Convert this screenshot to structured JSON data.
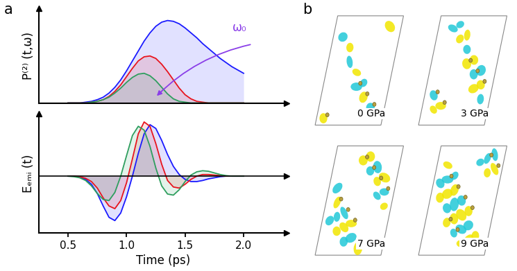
{
  "chart_data": [
    {
      "type": "area",
      "ylabel": "P⁽²⁾ (t,ω)",
      "annotation": "ω₀",
      "tick_labels": false,
      "xlim": [
        0.25,
        2.37
      ],
      "ylim": [
        0,
        1.15
      ],
      "x": [
        0.5,
        0.55,
        0.6,
        0.65,
        0.7,
        0.75,
        0.8,
        0.85,
        0.9,
        0.95,
        1.0,
        1.05,
        1.1,
        1.15,
        1.2,
        1.25,
        1.3,
        1.35,
        1.4,
        1.45,
        1.5,
        1.55,
        1.6,
        1.65,
        1.7,
        1.75,
        1.8,
        1.85,
        1.9,
        1.95,
        2.0
      ],
      "series": [
        {
          "color": "#1a1aff",
          "values": [
            0,
            0,
            0,
            0.01,
            0.02,
            0.04,
            0.07,
            0.12,
            0.19,
            0.28,
            0.39,
            0.51,
            0.63,
            0.75,
            0.85,
            0.93,
            0.98,
            1.0,
            0.99,
            0.96,
            0.91,
            0.85,
            0.79,
            0.72,
            0.66,
            0.6,
            0.54,
            0.49,
            0.44,
            0.4,
            0.36
          ]
        },
        {
          "color": "#e8141e",
          "values": [
            0,
            0,
            0,
            0,
            0.01,
            0.02,
            0.04,
            0.08,
            0.14,
            0.22,
            0.32,
            0.42,
            0.51,
            0.56,
            0.57,
            0.54,
            0.47,
            0.38,
            0.28,
            0.18,
            0.1,
            0.05,
            0.02,
            0.01,
            0,
            0,
            0,
            0,
            0,
            0,
            0
          ]
        },
        {
          "color": "#2e9e5e",
          "values": [
            0,
            0,
            0,
            0,
            0.01,
            0.02,
            0.04,
            0.07,
            0.12,
            0.18,
            0.25,
            0.31,
            0.35,
            0.36,
            0.33,
            0.27,
            0.19,
            0.11,
            0.05,
            0.02,
            0.01,
            0,
            0,
            0,
            0,
            0,
            0,
            0,
            0,
            0,
            0
          ]
        }
      ]
    },
    {
      "type": "area",
      "ylabel": "Eₑₘᵢ (t)",
      "xlabel": "Time (ps)",
      "tick_labels": "x",
      "xlim": [
        0.25,
        2.37
      ],
      "ylim": [
        -1.05,
        1.15
      ],
      "xticks": [
        {
          "value": 0.5,
          "label": "0.5"
        },
        {
          "value": 1.0,
          "label": "1.0"
        },
        {
          "value": 1.5,
          "label": "1.5"
        },
        {
          "value": 2.0,
          "label": "2.0"
        }
      ],
      "x": [
        0.5,
        0.55,
        0.6,
        0.65,
        0.7,
        0.75,
        0.8,
        0.85,
        0.9,
        0.95,
        1.0,
        1.05,
        1.1,
        1.15,
        1.2,
        1.25,
        1.3,
        1.35,
        1.4,
        1.45,
        1.5,
        1.55,
        1.6,
        1.65,
        1.7,
        1.75,
        1.8,
        1.85,
        1.9,
        1.95,
        2.0
      ],
      "series": [
        {
          "color": "#1a1aff",
          "values": [
            0,
            0,
            -0.02,
            -0.06,
            -0.15,
            -0.32,
            -0.55,
            -0.76,
            -0.82,
            -0.68,
            -0.38,
            0.0,
            0.42,
            0.78,
            0.95,
            0.88,
            0.66,
            0.4,
            0.18,
            0.03,
            -0.06,
            -0.1,
            -0.1,
            -0.08,
            -0.05,
            -0.03,
            -0.01,
            0,
            0,
            0,
            0
          ]
        },
        {
          "color": "#e8141e",
          "values": [
            0,
            0,
            -0.01,
            -0.04,
            -0.1,
            -0.22,
            -0.4,
            -0.55,
            -0.6,
            -0.45,
            -0.12,
            0.32,
            0.78,
            1.0,
            0.92,
            0.6,
            0.22,
            -0.08,
            -0.2,
            -0.22,
            -0.15,
            -0.06,
            0.0,
            0.03,
            0.03,
            0.02,
            0.01,
            0,
            0,
            0,
            0
          ]
        },
        {
          "color": "#2e9e5e",
          "values": [
            0,
            -0.01,
            -0.03,
            -0.08,
            -0.18,
            -0.32,
            -0.43,
            -0.45,
            -0.3,
            0.0,
            0.38,
            0.75,
            0.92,
            0.85,
            0.55,
            0.15,
            -0.18,
            -0.33,
            -0.35,
            -0.25,
            -0.1,
            0.02,
            0.08,
            0.1,
            0.09,
            0.06,
            0.03,
            0.01,
            0,
            0,
            0
          ]
        }
      ]
    }
  ],
  "panel_labels": [
    "a",
    "b"
  ],
  "structures": {
    "labels": [
      "0 GPa",
      "3 GPa",
      "7 GPa",
      "9 GPa"
    ]
  }
}
